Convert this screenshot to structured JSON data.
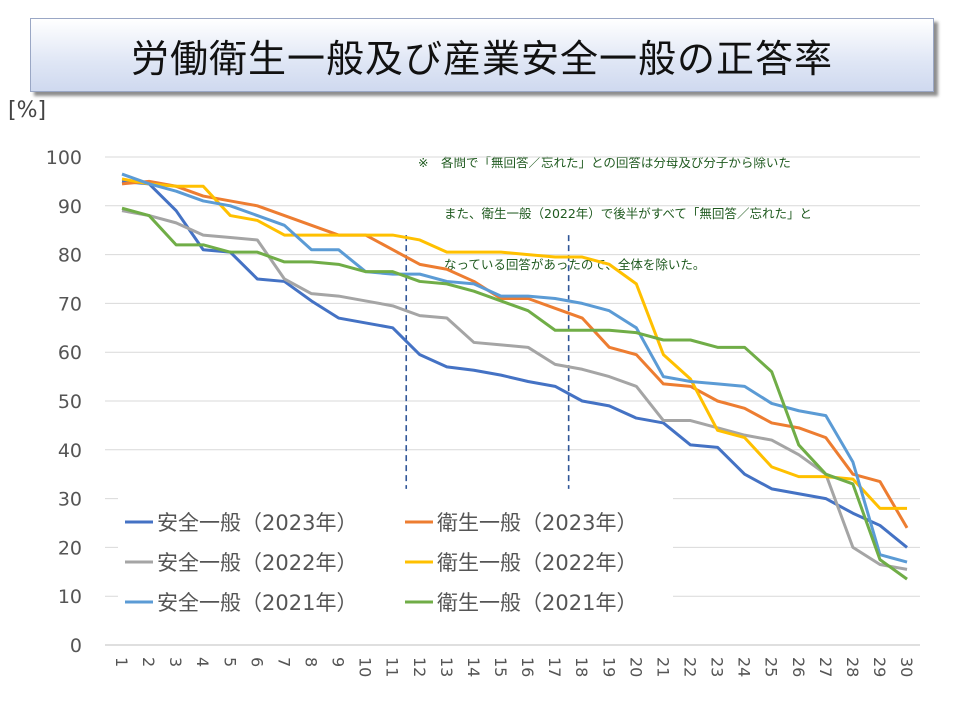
{
  "chart_data": {
    "type": "line",
    "title": "労働衛生一般及び産業安全一般の正答率",
    "ylabel": "[%]",
    "xlabel": "",
    "ylim": [
      0,
      100
    ],
    "yticks": [
      0,
      10,
      20,
      30,
      40,
      50,
      60,
      70,
      80,
      90,
      100
    ],
    "x": [
      1,
      2,
      3,
      4,
      5,
      6,
      7,
      8,
      9,
      10,
      11,
      12,
      13,
      14,
      15,
      16,
      17,
      18,
      19,
      20,
      21,
      22,
      23,
      24,
      25,
      26,
      27,
      28,
      29,
      30
    ],
    "grid": true,
    "legend_position": "bottom-left",
    "note": [
      "※　各問で「無回答／忘れた」との回答は分母及び分子から除いた",
      "また、衛生一般（2022年）で後半がすべて「無回答／忘れた」と",
      "なっている回答があったので、全体を除いた。"
    ],
    "reference_lines": [
      {
        "x": 11.5,
        "y_range": [
          32,
          84
        ],
        "style": "dashed",
        "color": "#2f5597"
      },
      {
        "x": 17.5,
        "y_range": [
          32,
          84
        ],
        "style": "dashed",
        "color": "#2f5597"
      }
    ],
    "series": [
      {
        "name": "安全一般（2023年）",
        "color": "#4472c4",
        "values": [
          95,
          94.5,
          89,
          81,
          80.5,
          75,
          74.5,
          70.5,
          67,
          66,
          65,
          59.5,
          57,
          56.3,
          55.3,
          54,
          53,
          50,
          49,
          46.5,
          45.5,
          41,
          40.5,
          35,
          32,
          31,
          30,
          27,
          24.5,
          20
        ]
      },
      {
        "name": "衛生一般（2023年）",
        "color": "#ed7d31",
        "values": [
          94.5,
          95,
          94,
          92,
          91,
          90,
          88,
          86,
          84,
          84,
          81,
          78,
          77,
          74.5,
          71,
          71,
          69,
          67,
          61,
          59.5,
          53.5,
          53,
          50,
          48.5,
          45.5,
          44.5,
          42.5,
          35,
          33.5,
          24
        ]
      },
      {
        "name": "安全一般（2022年）",
        "color": "#a5a5a5",
        "values": [
          89,
          88,
          86.5,
          84,
          83.5,
          83,
          75,
          72,
          71.5,
          70.5,
          69.5,
          67.5,
          67,
          62,
          61.5,
          61,
          57.5,
          56.5,
          55,
          53,
          46,
          46,
          44.5,
          43,
          42,
          39,
          35,
          20,
          16.5,
          15.5
        ]
      },
      {
        "name": "衛生一般（2022年）",
        "color": "#ffc000",
        "values": [
          95.5,
          94.5,
          94,
          94,
          88,
          87,
          84,
          84,
          84,
          84,
          84,
          83,
          80.5,
          80.5,
          80.5,
          80,
          79.5,
          79.5,
          78,
          74,
          59.5,
          54.5,
          44,
          42.5,
          36.5,
          34.5,
          34.5,
          34,
          28,
          28
        ]
      },
      {
        "name": "安全一般（2021年）",
        "color": "#5b9bd5",
        "values": [
          96.5,
          94.5,
          93,
          91,
          90,
          88,
          86,
          81,
          81,
          76.5,
          76,
          76,
          74.5,
          74,
          71.5,
          71.5,
          71,
          70,
          68.5,
          65,
          55,
          54,
          53.5,
          53,
          49.5,
          48,
          47,
          37.5,
          18.5,
          17
        ]
      },
      {
        "name": "衛生一般（2021年）",
        "color": "#70ad47",
        "values": [
          89.5,
          88,
          82,
          82,
          80.5,
          80.5,
          78.5,
          78.5,
          78,
          76.5,
          76.5,
          74.5,
          74,
          72.5,
          70.5,
          68.5,
          64.5,
          64.5,
          64.5,
          64,
          62.5,
          62.5,
          61,
          61,
          56,
          41,
          35,
          33,
          17.5,
          13.5
        ]
      }
    ]
  }
}
